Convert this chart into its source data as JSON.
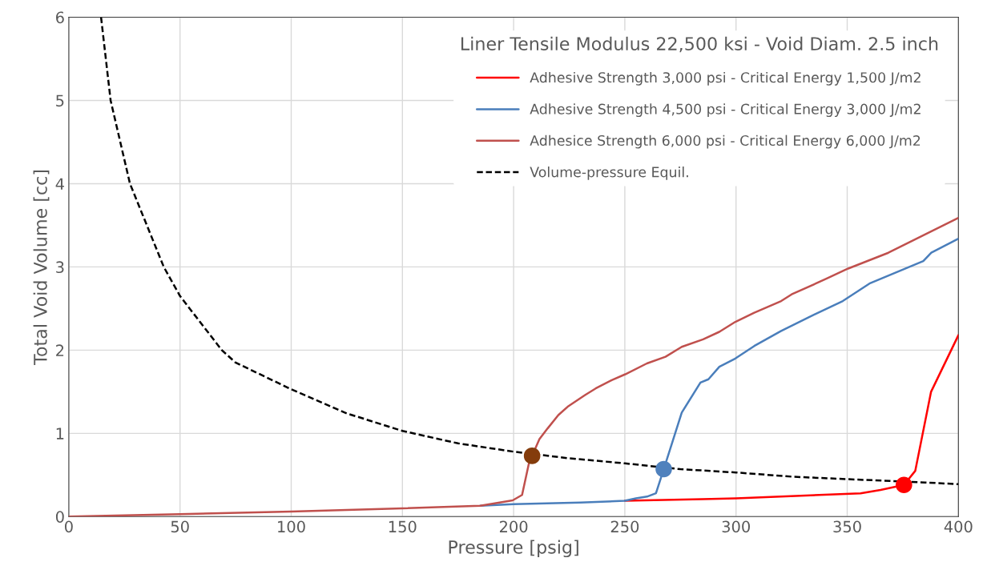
{
  "chart_data": {
    "type": "line",
    "xlabel": "Pressure [psig]",
    "ylabel": "Total Void Volume [cc]",
    "legend_title": "Liner Tensile Modulus 22,500 ksi - Void Diam. 2.5 inch",
    "xlim": [
      0,
      400
    ],
    "xticks": [
      0,
      50,
      100,
      150,
      200,
      250,
      300,
      350,
      400
    ],
    "ylim": [
      0,
      6
    ],
    "yticks": [
      0,
      1,
      2,
      3,
      4,
      5,
      6
    ],
    "grid": true,
    "legend": "top right",
    "series": [
      {
        "name": "Adhesive Strength 3,000 psi - Critical Energy 1,500 J/m2",
        "color": "#ff0000",
        "x": [
          250,
          285,
          300,
          356,
          365,
          375.5,
          380.6,
          387.7,
          400
        ],
        "values": [
          0.19,
          0.21,
          0.22,
          0.28,
          0.32,
          0.38,
          0.55,
          1.5,
          2.18
        ]
      },
      {
        "name": "Adhesive Strength 4,500 psi - Critical Energy 3,000 J/m2",
        "color": "#4a7ebb",
        "x": [
          185,
          200,
          230,
          250,
          255,
          260,
          264,
          267.5,
          275.6,
          284,
          287.6,
          292.5,
          299.7,
          308.2,
          320.3,
          332.3,
          348,
          360,
          384.2,
          387.8,
          400
        ],
        "values": [
          0.13,
          0.15,
          0.17,
          0.19,
          0.22,
          0.24,
          0.28,
          0.57,
          1.25,
          1.61,
          1.65,
          1.8,
          1.9,
          2.05,
          2.23,
          2.39,
          2.59,
          2.8,
          3.07,
          3.17,
          3.34
        ]
      },
      {
        "name": "Adhesice Strength 6,000 psi - Critical Energy 6,000 J/m2",
        "color": "#c0504d",
        "x": [
          0,
          50,
          100,
          150,
          185,
          199.6,
          203.8,
          206.8,
          208.3,
          211.6,
          215.3,
          220.1,
          224.3,
          232.1,
          236.9,
          244.1,
          250.2,
          259.9,
          268.3,
          275.6,
          285.2,
          292.5,
          299.7,
          308.2,
          320.3,
          325,
          340.8,
          350.4,
          368.5,
          400
        ],
        "values": [
          0,
          0.03,
          0.06,
          0.1,
          0.13,
          0.195,
          0.26,
          0.63,
          0.73,
          0.93,
          1.06,
          1.22,
          1.32,
          1.46,
          1.54,
          1.64,
          1.71,
          1.84,
          1.92,
          2.04,
          2.13,
          2.22,
          2.34,
          2.45,
          2.59,
          2.67,
          2.86,
          2.98,
          3.17,
          3.59
        ]
      },
      {
        "name": "Volume-pressure Equil.",
        "color": "#000000",
        "line_style": "dashed",
        "x": [
          14.5,
          18.8,
          27.5,
          42.7,
          50,
          68.8,
          75,
          100,
          125,
          150,
          175,
          200,
          225,
          250,
          275,
          300,
          325,
          350,
          385,
          400
        ],
        "values": [
          6,
          5,
          4,
          3,
          2.65,
          2,
          1.85,
          1.53,
          1.24,
          1.03,
          0.88,
          0.78,
          0.7,
          0.64,
          0.57,
          0.53,
          0.48,
          0.45,
          0.41,
          0.39
        ]
      },
      {
        "type": "scatter",
        "marker": "circle",
        "color": "#843c0c",
        "x": [
          208.3
        ],
        "values": [
          0.73
        ]
      },
      {
        "type": "scatter",
        "marker": "circle",
        "color": "#4f81bd",
        "x": [
          267.5
        ],
        "values": [
          0.57
        ]
      },
      {
        "type": "scatter",
        "marker": "circle",
        "color": "#ff0000",
        "x": [
          375.5
        ],
        "values": [
          0.38
        ]
      }
    ]
  }
}
